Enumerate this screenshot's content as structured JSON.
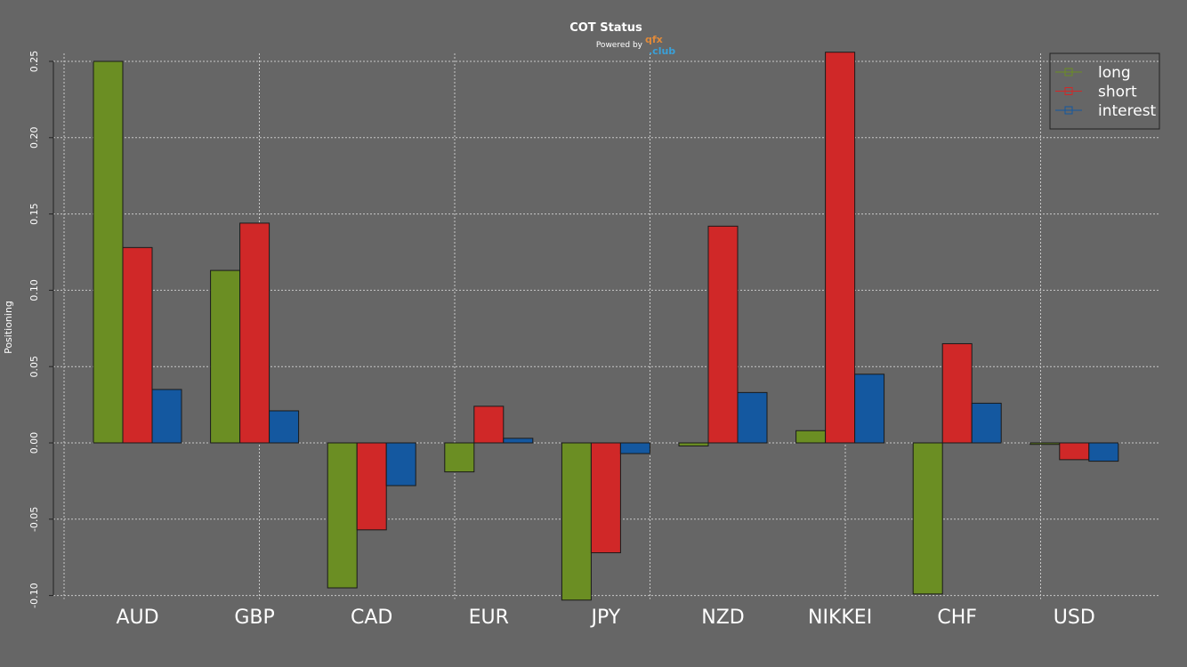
{
  "chart_data": {
    "type": "bar",
    "title": "COT Status",
    "subtitle": "Powered by",
    "logo": [
      "qfx",
      ".club"
    ],
    "ylabel": "Positioning",
    "xlabel": "",
    "ylim": [
      -0.1,
      0.25
    ],
    "yticks": [
      "-0.10",
      "-0.05",
      "0.00",
      "0.05",
      "0.10",
      "0.15",
      "0.20",
      "0.25"
    ],
    "grid": true,
    "legend_position": "top-right",
    "categories": [
      "AUD",
      "GBP",
      "CAD",
      "EUR",
      "JPY",
      "NZD",
      "NIKKEI",
      "CHF",
      "USD"
    ],
    "series": [
      {
        "name": "long",
        "color": "#6b8e23",
        "values": [
          0.25,
          0.113,
          -0.095,
          -0.019,
          -0.103,
          -0.002,
          0.008,
          -0.099,
          -0.001
        ]
      },
      {
        "name": "short",
        "color": "#d02828",
        "values": [
          0.128,
          0.144,
          -0.057,
          0.024,
          -0.072,
          0.142,
          0.256,
          0.065,
          -0.011
        ]
      },
      {
        "name": "interest",
        "color": "#1458a0",
        "values": [
          0.035,
          0.021,
          -0.028,
          0.003,
          -0.007,
          0.033,
          0.045,
          0.026,
          -0.012
        ]
      }
    ]
  }
}
